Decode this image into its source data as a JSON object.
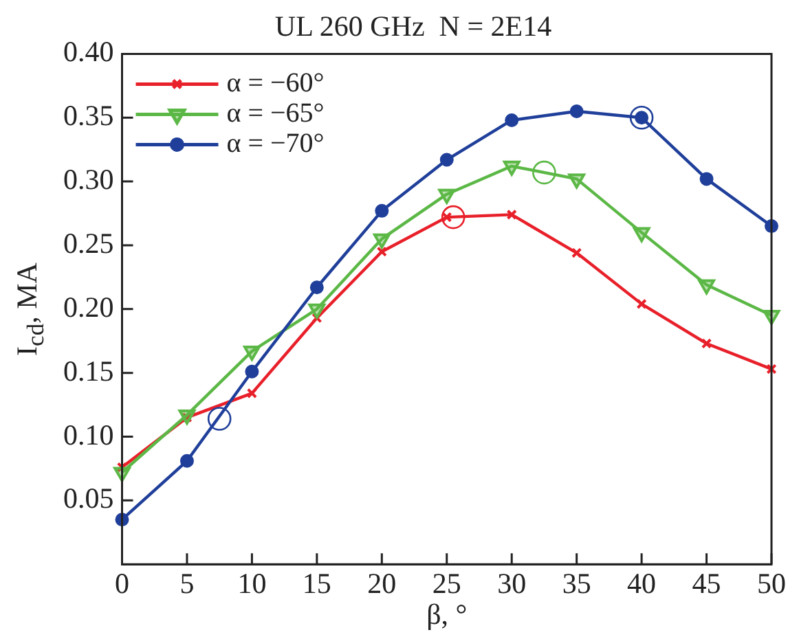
{
  "chart_data": {
    "type": "line",
    "title": "UL 260 GHz  N = 2E14",
    "xlabel": "β, °",
    "ylabel": "I$_{cd}$, MA",
    "x": [
      0,
      5,
      10,
      15,
      20,
      25,
      30,
      35,
      40,
      45,
      50
    ],
    "series": [
      {
        "name": "α = −60°",
        "color": "#e8202a",
        "marker": "cross",
        "values": [
          0.076,
          0.115,
          0.134,
          0.193,
          0.245,
          0.272,
          0.274,
          0.244,
          0.204,
          0.173,
          0.153
        ]
      },
      {
        "name": "α = −65°",
        "color": "#5cb846",
        "marker": "triangle",
        "values": [
          0.072,
          0.117,
          0.167,
          0.2,
          0.255,
          0.29,
          0.312,
          0.302,
          0.26,
          0.219,
          0.195
        ]
      },
      {
        "name": "α = −70°",
        "color": "#1f3f9a",
        "marker": "circle",
        "values": [
          0.035,
          0.081,
          0.151,
          0.217,
          0.277,
          0.317,
          0.348,
          0.355,
          0.35,
          0.302,
          0.265
        ]
      },
      {
        "type": "scatter",
        "color": "#e8202a",
        "marker": "circle",
        "x": [
          25.5
        ],
        "values": [
          0.272
        ]
      },
      {
        "type": "scatter",
        "color": "#5cb846",
        "marker": "circle",
        "x": [
          32.5
        ],
        "values": [
          0.307
        ]
      },
      {
        "type": "scatter",
        "color": "#1f3f9a",
        "marker": "circle",
        "x": [
          7.5,
          40
        ],
        "values": [
          0.114,
          0.35
        ]
      }
    ],
    "xlim": [
      0,
      50
    ],
    "xticks": [
      0,
      5,
      10,
      15,
      20,
      25,
      30,
      35,
      40,
      45,
      50
    ],
    "ylim": [
      0,
      0.4
    ],
    "yticks": [
      0.05,
      {
        "value": 0.1,
        "label": "0.10"
      },
      0.15,
      {
        "value": 0.2,
        "label": "0.20"
      },
      0.25,
      {
        "value": 0.3,
        "label": "0.30"
      },
      0.35,
      {
        "value": 0.4,
        "label": "0.40"
      }
    ],
    "grid": false,
    "legend": "top left",
    "line_style": "solid"
  }
}
